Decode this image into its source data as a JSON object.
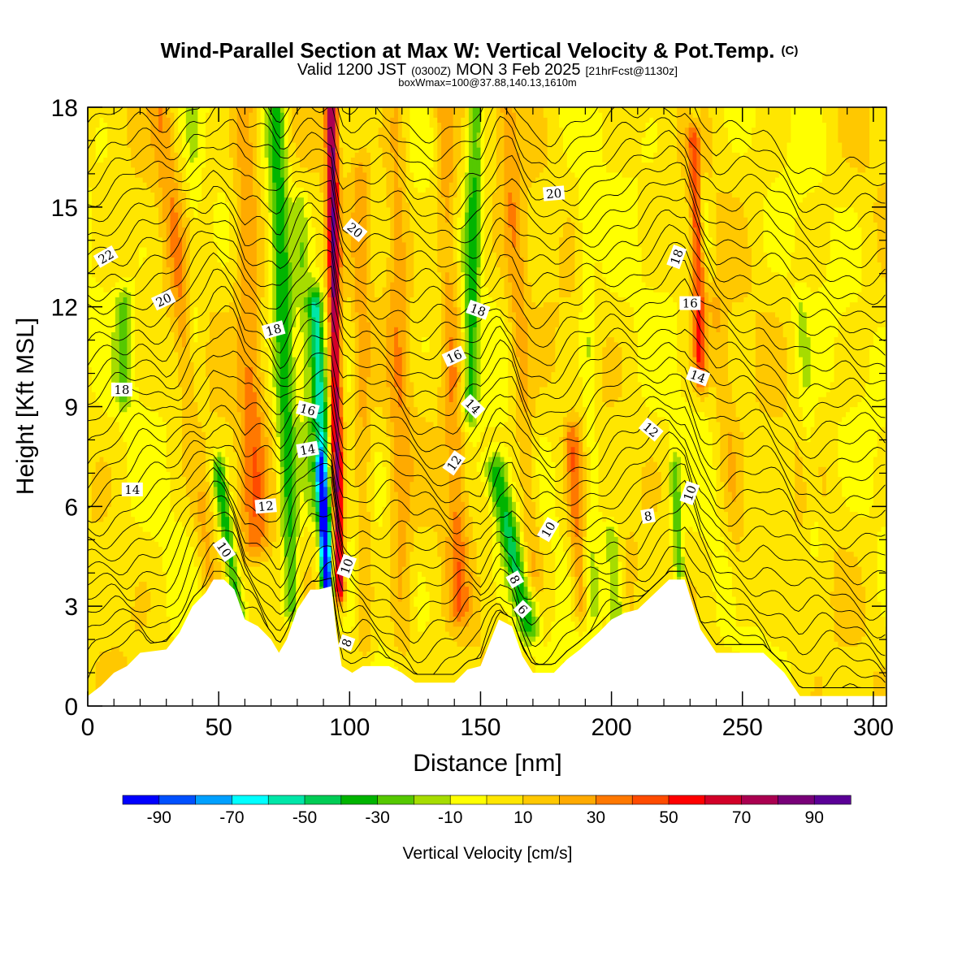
{
  "chart_data": {
    "type": "heatmap",
    "title": "Wind-Parallel Section at Max W: Vertical Velocity & Pot.Temp.",
    "title_unit": "(C)",
    "subtitle": {
      "prefix": "Valid 1200 JST",
      "utc": "(0300Z)",
      "date": "MON 3 Feb 2025",
      "forecast": "[21hrFcst@1130z]"
    },
    "box_info": "boxWmax=100@37.88,140.13,1610m",
    "xlabel": "Distance [nm]",
    "ylabel": "Height [Kft MSL]",
    "xlim": [
      0,
      305
    ],
    "ylim": [
      0,
      18
    ],
    "x_ticks": [
      "0",
      "50",
      "100",
      "150",
      "200",
      "250",
      "300"
    ],
    "y_ticks": [
      "0",
      "3",
      "6",
      "9",
      "12",
      "15",
      "18"
    ],
    "colorbar": {
      "label": "Vertical Velocity [cm/s]",
      "tick_labels": [
        "-90",
        "-70",
        "-50",
        "-30",
        "-10",
        "10",
        "30",
        "50",
        "70",
        "90"
      ],
      "levels": [
        -100,
        -90,
        -80,
        -70,
        -60,
        -50,
        -40,
        -30,
        -20,
        -10,
        0,
        10,
        20,
        30,
        40,
        50,
        60,
        70,
        80,
        90,
        100
      ],
      "colors": [
        "#0000ff",
        "#0050ff",
        "#00a0ff",
        "#00ffff",
        "#00e6a8",
        "#00cc55",
        "#00b400",
        "#55c800",
        "#a6dc00",
        "#ffff00",
        "#ffe600",
        "#ffc800",
        "#ffaa00",
        "#ff7800",
        "#ff4b00",
        "#ff0000",
        "#d20028",
        "#aa0050",
        "#780078",
        "#5a0096"
      ]
    },
    "terrain": [
      [
        0,
        0.3
      ],
      [
        5,
        0.6
      ],
      [
        10,
        1.0
      ],
      [
        15,
        1.2
      ],
      [
        20,
        1.6
      ],
      [
        30,
        1.7
      ],
      [
        35,
        2.2
      ],
      [
        40,
        3.0
      ],
      [
        45,
        3.4
      ],
      [
        48,
        3.8
      ],
      [
        52,
        3.8
      ],
      [
        56,
        3.5
      ],
      [
        60,
        2.6
      ],
      [
        65,
        2.4
      ],
      [
        70,
        2.0
      ],
      [
        73,
        1.6
      ],
      [
        76,
        2.0
      ],
      [
        80,
        2.9
      ],
      [
        85,
        3.5
      ],
      [
        88,
        3.5
      ],
      [
        93,
        3.6
      ],
      [
        95,
        2.2
      ],
      [
        97,
        1.2
      ],
      [
        101,
        1.0
      ],
      [
        105,
        1.2
      ],
      [
        115,
        1.2
      ],
      [
        120,
        1.0
      ],
      [
        125,
        0.7
      ],
      [
        140,
        0.7
      ],
      [
        145,
        1.1
      ],
      [
        150,
        1.2
      ],
      [
        153,
        1.8
      ],
      [
        157,
        2.6
      ],
      [
        162,
        2.4
      ],
      [
        166,
        1.5
      ],
      [
        170,
        1.0
      ],
      [
        178,
        1.0
      ],
      [
        183,
        1.4
      ],
      [
        188,
        1.7
      ],
      [
        195,
        2.2
      ],
      [
        200,
        2.6
      ],
      [
        205,
        2.8
      ],
      [
        210,
        2.9
      ],
      [
        214,
        3.2
      ],
      [
        218,
        3.5
      ],
      [
        222,
        3.8
      ],
      [
        228,
        3.8
      ],
      [
        230,
        3.3
      ],
      [
        234,
        2.3
      ],
      [
        240,
        1.6
      ],
      [
        250,
        1.6
      ],
      [
        258,
        1.6
      ],
      [
        266,
        1.0
      ],
      [
        272,
        0.3
      ],
      [
        300,
        0.3
      ],
      [
        305,
        0.3
      ]
    ],
    "w_features": [
      {
        "x0": 14,
        "x1": 14,
        "y0": 12,
        "y1": 9.5,
        "w": 3,
        "v": -25
      },
      {
        "x0": 28,
        "x1": 46,
        "y0": 18,
        "y1": 4,
        "w": 4,
        "v": 20
      },
      {
        "x0": 40,
        "x1": 42,
        "y0": 18,
        "y1": 7,
        "w": 3,
        "v": -12
      },
      {
        "x0": 50,
        "x1": 58,
        "y0": 7,
        "y1": 2.5,
        "w": 2.6,
        "v": -40
      },
      {
        "x0": 60,
        "x1": 64,
        "y0": 18,
        "y1": 5,
        "w": 5,
        "v": 28
      },
      {
        "x0": 72,
        "x1": 78,
        "y0": 18,
        "y1": 3,
        "w": 3.5,
        "v": -38
      },
      {
        "x0": 81,
        "x1": 86,
        "y0": 15,
        "y1": 6,
        "w": 3,
        "v": -15
      },
      {
        "x0": 87,
        "x1": 92,
        "y0": 12,
        "y1": 3.6,
        "w": 2.6,
        "v": -55
      },
      {
        "x0": 89,
        "x1": 91,
        "y0": 7,
        "y1": 3.8,
        "w": 1.6,
        "v": -70
      },
      {
        "x0": 93,
        "x1": 96,
        "y0": 18,
        "y1": 3.6,
        "w": 2.2,
        "v": 78
      },
      {
        "x0": 104,
        "x1": 106,
        "y0": 16,
        "y1": 2,
        "w": 3,
        "v": 18
      },
      {
        "x0": 118,
        "x1": 120,
        "y0": 18,
        "y1": 2,
        "w": 4,
        "v": 20
      },
      {
        "x0": 136,
        "x1": 142,
        "y0": 18,
        "y1": 3,
        "w": 4,
        "v": 25
      },
      {
        "x0": 148,
        "x1": 146,
        "y0": 18,
        "y1": 9,
        "w": 3,
        "v": -35
      },
      {
        "x0": 156,
        "x1": 168,
        "y0": 7,
        "y1": 2.5,
        "w": 4,
        "v": -45
      },
      {
        "x0": 160,
        "x1": 170,
        "y0": 18,
        "y1": 4,
        "w": 4,
        "v": 20
      },
      {
        "x0": 185,
        "x1": 188,
        "y0": 8,
        "y1": 3,
        "w": 3,
        "v": 28
      },
      {
        "x0": 190,
        "x1": 194,
        "y0": 15,
        "y1": 3,
        "w": 3,
        "v": -15
      },
      {
        "x0": 200,
        "x1": 202,
        "y0": 5,
        "y1": 2.8,
        "w": 3,
        "v": -30
      },
      {
        "x0": 224,
        "x1": 226,
        "y0": 7,
        "y1": 4,
        "w": 2,
        "v": -30
      },
      {
        "x0": 232,
        "x1": 234,
        "y0": 17,
        "y1": 10,
        "w": 2.5,
        "v": 45
      },
      {
        "x0": 232,
        "x1": 236,
        "y0": 18,
        "y1": 14,
        "w": 2,
        "v": -20
      },
      {
        "x0": 240,
        "x1": 250,
        "y0": 12,
        "y1": 3,
        "w": 4,
        "v": 15
      },
      {
        "x0": 272,
        "x1": 278,
        "y0": 12,
        "y1": 5,
        "w": 3,
        "v": -12
      }
    ],
    "contour_labels": [
      {
        "text": "22",
        "x": 7,
        "y": 13.5,
        "rot": -30
      },
      {
        "text": "20",
        "x": 29,
        "y": 12.2,
        "rot": -25
      },
      {
        "text": "18",
        "x": 13,
        "y": 9.5,
        "rot": 0
      },
      {
        "text": "14",
        "x": 17,
        "y": 6.5,
        "rot": 0
      },
      {
        "text": "18",
        "x": 71,
        "y": 11.3,
        "rot": -15
      },
      {
        "text": "16",
        "x": 84,
        "y": 8.9,
        "rot": 15
      },
      {
        "text": "14",
        "x": 84,
        "y": 7.7,
        "rot": -10
      },
      {
        "text": "12",
        "x": 68,
        "y": 6.0,
        "rot": -5
      },
      {
        "text": "10",
        "x": 52,
        "y": 4.7,
        "rot": 55
      },
      {
        "text": "20",
        "x": 102,
        "y": 14.3,
        "rot": 40
      },
      {
        "text": "10",
        "x": 99,
        "y": 4.2,
        "rot": -70
      },
      {
        "text": "8",
        "x": 99,
        "y": 1.9,
        "rot": -70
      },
      {
        "text": "20",
        "x": 178,
        "y": 15.4,
        "rot": -5
      },
      {
        "text": "18",
        "x": 149,
        "y": 11.9,
        "rot": 20
      },
      {
        "text": "16",
        "x": 140,
        "y": 10.5,
        "rot": -25
      },
      {
        "text": "14",
        "x": 147,
        "y": 9.0,
        "rot": 45
      },
      {
        "text": "12",
        "x": 140,
        "y": 7.3,
        "rot": -55
      },
      {
        "text": "10",
        "x": 176,
        "y": 5.3,
        "rot": -60
      },
      {
        "text": "8",
        "x": 163,
        "y": 3.8,
        "rot": 60
      },
      {
        "text": "6",
        "x": 166,
        "y": 2.9,
        "rot": 45
      },
      {
        "text": "18",
        "x": 225,
        "y": 13.5,
        "rot": -70
      },
      {
        "text": "16",
        "x": 230,
        "y": 12.1,
        "rot": 0
      },
      {
        "text": "14",
        "x": 233,
        "y": 9.9,
        "rot": 20
      },
      {
        "text": "12",
        "x": 215,
        "y": 8.3,
        "rot": 40
      },
      {
        "text": "10",
        "x": 230,
        "y": 6.4,
        "rot": -70
      },
      {
        "text": "8",
        "x": 214,
        "y": 5.7,
        "rot": -10
      }
    ]
  }
}
